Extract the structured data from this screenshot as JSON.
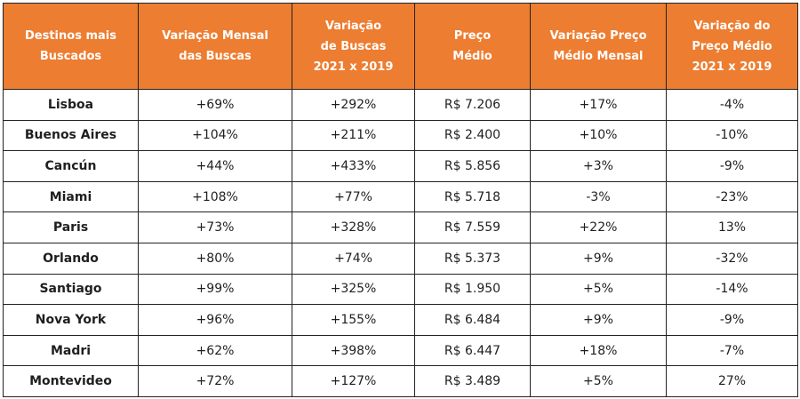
{
  "colors": {
    "header_bg": "#ED7D31",
    "header_text": "#ffffff",
    "border": "#222222"
  },
  "headers": [
    {
      "lines": [
        "Destinos mais",
        "Buscados"
      ]
    },
    {
      "lines": [
        "Variação Mensal",
        "das Buscas"
      ]
    },
    {
      "lines": [
        "Variação",
        "de Buscas",
        "2021 x 2019"
      ]
    },
    {
      "lines": [
        "Preço",
        "Médio"
      ]
    },
    {
      "lines": [
        "Variação Preço",
        "Médio Mensal"
      ]
    },
    {
      "lines": [
        "Variação do",
        "Preço Médio",
        "2021 x 2019"
      ]
    }
  ],
  "rows": [
    [
      "Lisboa",
      "+69%",
      "+292%",
      "R$ 7.206",
      "+17%",
      "-4%"
    ],
    [
      "Buenos Aires",
      "+104%",
      "+211%",
      "R$ 2.400",
      "+10%",
      "-10%"
    ],
    [
      "Cancún",
      "+44%",
      "+433%",
      "R$ 5.856",
      "+3%",
      "-9%"
    ],
    [
      "Miami",
      "+108%",
      "+77%",
      "R$ 5.718",
      "-3%",
      "-23%"
    ],
    [
      "Paris",
      "+73%",
      "+328%",
      "R$ 7.559",
      "+22%",
      "13%"
    ],
    [
      "Orlando",
      "+80%",
      "+74%",
      "R$ 5.373",
      "+9%",
      "-32%"
    ],
    [
      "Santiago",
      "+99%",
      "+325%",
      "R$ 1.950",
      "+5%",
      "-14%"
    ],
    [
      "Nova York",
      "+96%",
      "+155%",
      "R$ 6.484",
      "+9%",
      "-9%"
    ],
    [
      "Madri",
      "+62%",
      "+398%",
      "R$ 6.447",
      "+18%",
      "-7%"
    ],
    [
      "Montevideo",
      "+72%",
      "+127%",
      "R$ 3.489",
      "+5%",
      "27%"
    ]
  ]
}
